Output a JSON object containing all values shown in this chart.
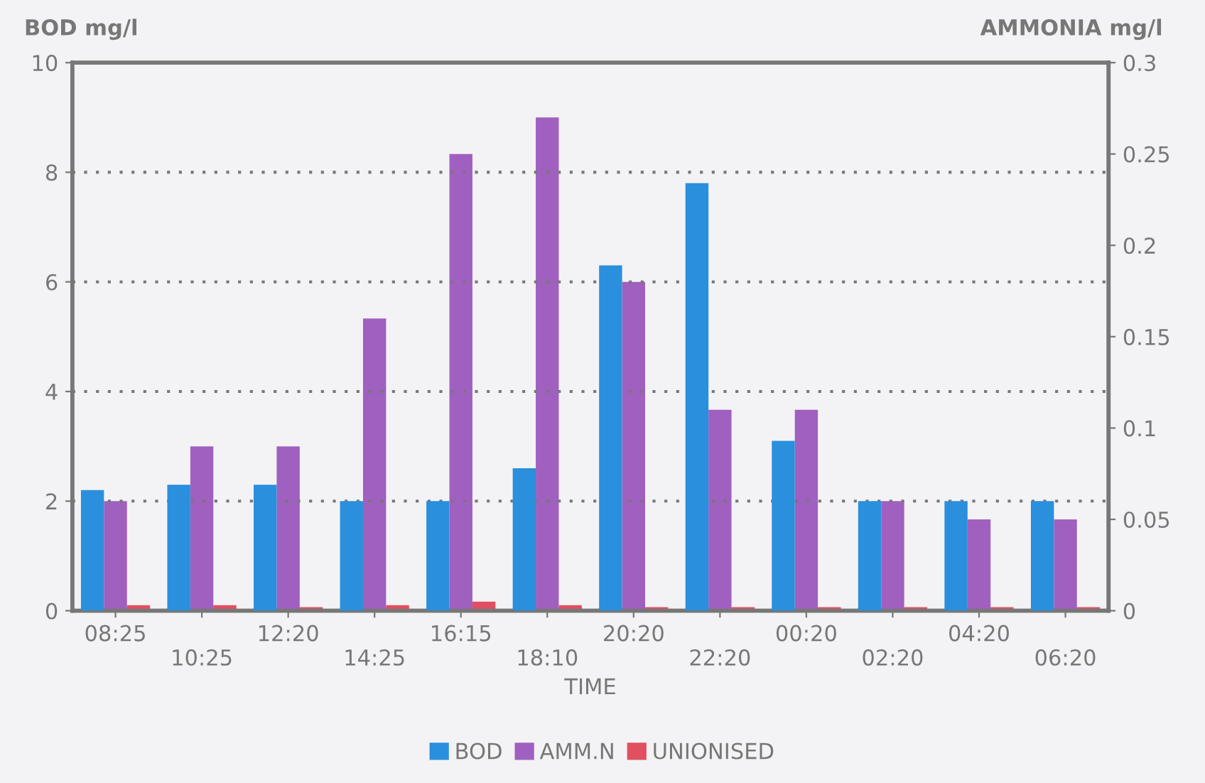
{
  "chart_data": {
    "type": "bar",
    "xlabel": "TIME",
    "ylabel": "BOD mg/l",
    "y2label": "AMMONIA mg/l",
    "categories": [
      "08:25",
      "10:25",
      "12:20",
      "14:25",
      "16:15",
      "18:10",
      "20:20",
      "22:20",
      "00:20",
      "02:20",
      "04:20",
      "06:20"
    ],
    "series": [
      {
        "name": "BOD",
        "color": "#2a8fdc",
        "values": [
          2.2,
          2.3,
          2.3,
          2.0,
          2.0,
          2.6,
          6.3,
          7.8,
          3.1,
          2.0,
          2.0,
          2.0
        ]
      },
      {
        "name": "AMM.N",
        "color": "#a060c0",
        "axis": "y2",
        "values": [
          0.06,
          0.09,
          0.09,
          0.16,
          0.25,
          0.27,
          0.18,
          0.11,
          0.11,
          0.06,
          0.05,
          0.05
        ]
      },
      {
        "name": "UNIONISED",
        "color": "#e05060",
        "axis": "y2",
        "values": [
          0.003,
          0.003,
          0.002,
          0.003,
          0.005,
          0.003,
          0.002,
          0.002,
          0.002,
          0.002,
          0.002,
          0.002
        ]
      }
    ],
    "ylim": [
      0,
      10
    ],
    "yticks": [
      0,
      2,
      4,
      6,
      8,
      10
    ],
    "y2lim": [
      0,
      0.3
    ],
    "y2ticks": [
      0,
      0.05,
      0.1,
      0.15,
      0.2,
      0.25,
      0.3
    ],
    "grid": "y",
    "legend": "bottom"
  }
}
